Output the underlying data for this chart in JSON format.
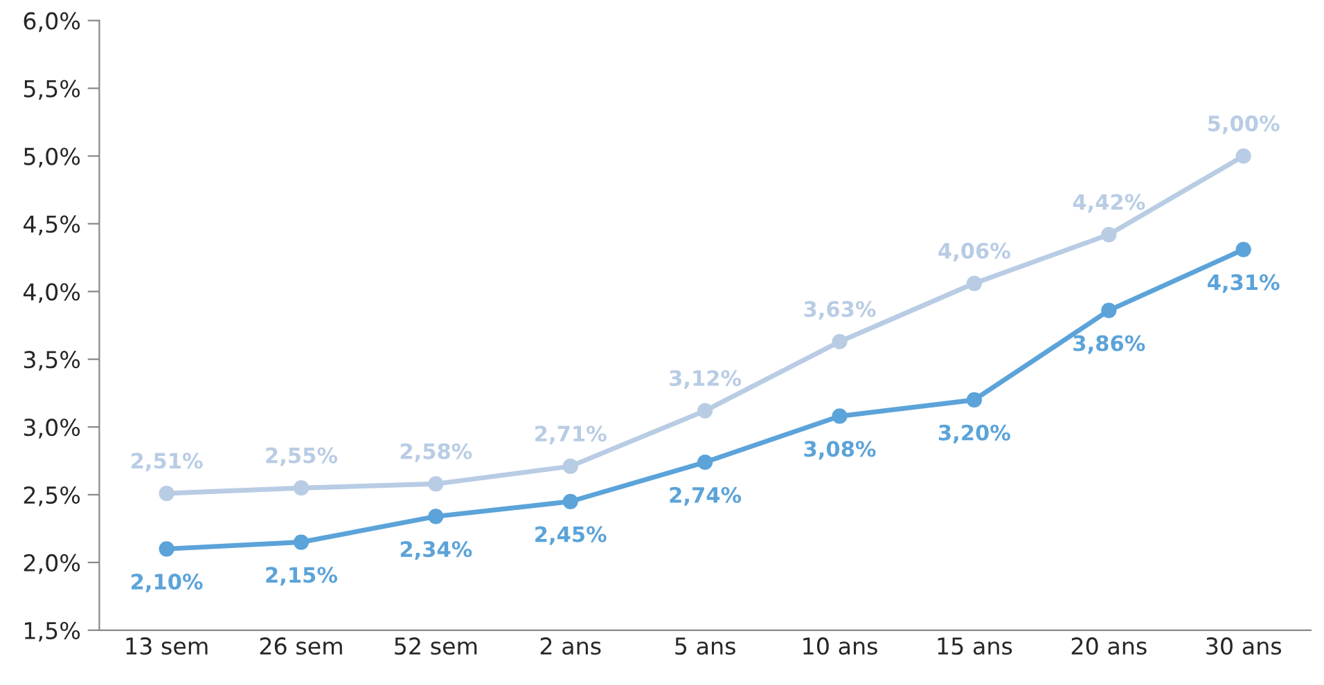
{
  "chart_data": {
    "type": "line",
    "categories": [
      "13 sem",
      "26 sem",
      "52 sem",
      "2 ans",
      "5 ans",
      "10 ans",
      "15 ans",
      "20 ans",
      "30 ans"
    ],
    "series": [
      {
        "color": "#b8cce4",
        "values": [
          2.51,
          2.55,
          2.58,
          2.71,
          3.12,
          3.63,
          4.06,
          4.42,
          5.0
        ],
        "value_labels": [
          "2,51%",
          "2,55%",
          "2,58%",
          "2,71%",
          "3,12%",
          "3,63%",
          "4,06%",
          "4,42%",
          "5,00%"
        ]
      },
      {
        "color": "#5ba3d9",
        "values": [
          2.1,
          2.15,
          2.34,
          2.45,
          2.74,
          3.08,
          3.2,
          3.86,
          4.31
        ],
        "value_labels": [
          "2,10%",
          "2,15%",
          "2,34%",
          "2,45%",
          "2,74%",
          "3,08%",
          "3,20%",
          "3,86%",
          "4,31%"
        ]
      }
    ],
    "ylim": [
      1.5,
      6.0
    ],
    "yticks": [
      {
        "value": 1.5,
        "label": "1,5%"
      },
      {
        "value": 2.0,
        "label": "2,0%"
      },
      {
        "value": 2.5,
        "label": "2,5%"
      },
      {
        "value": 3.0,
        "label": "3,0%"
      },
      {
        "value": 3.5,
        "label": "3,5%"
      },
      {
        "value": 4.0,
        "label": "4,0%"
      },
      {
        "value": 4.5,
        "label": "4,5%"
      },
      {
        "value": 5.0,
        "label": "5,0%"
      },
      {
        "value": 5.5,
        "label": "5,5%"
      },
      {
        "value": 6.0,
        "label": "6,0%"
      }
    ],
    "marker": "circle",
    "line_style": "solid",
    "grid": false
  }
}
